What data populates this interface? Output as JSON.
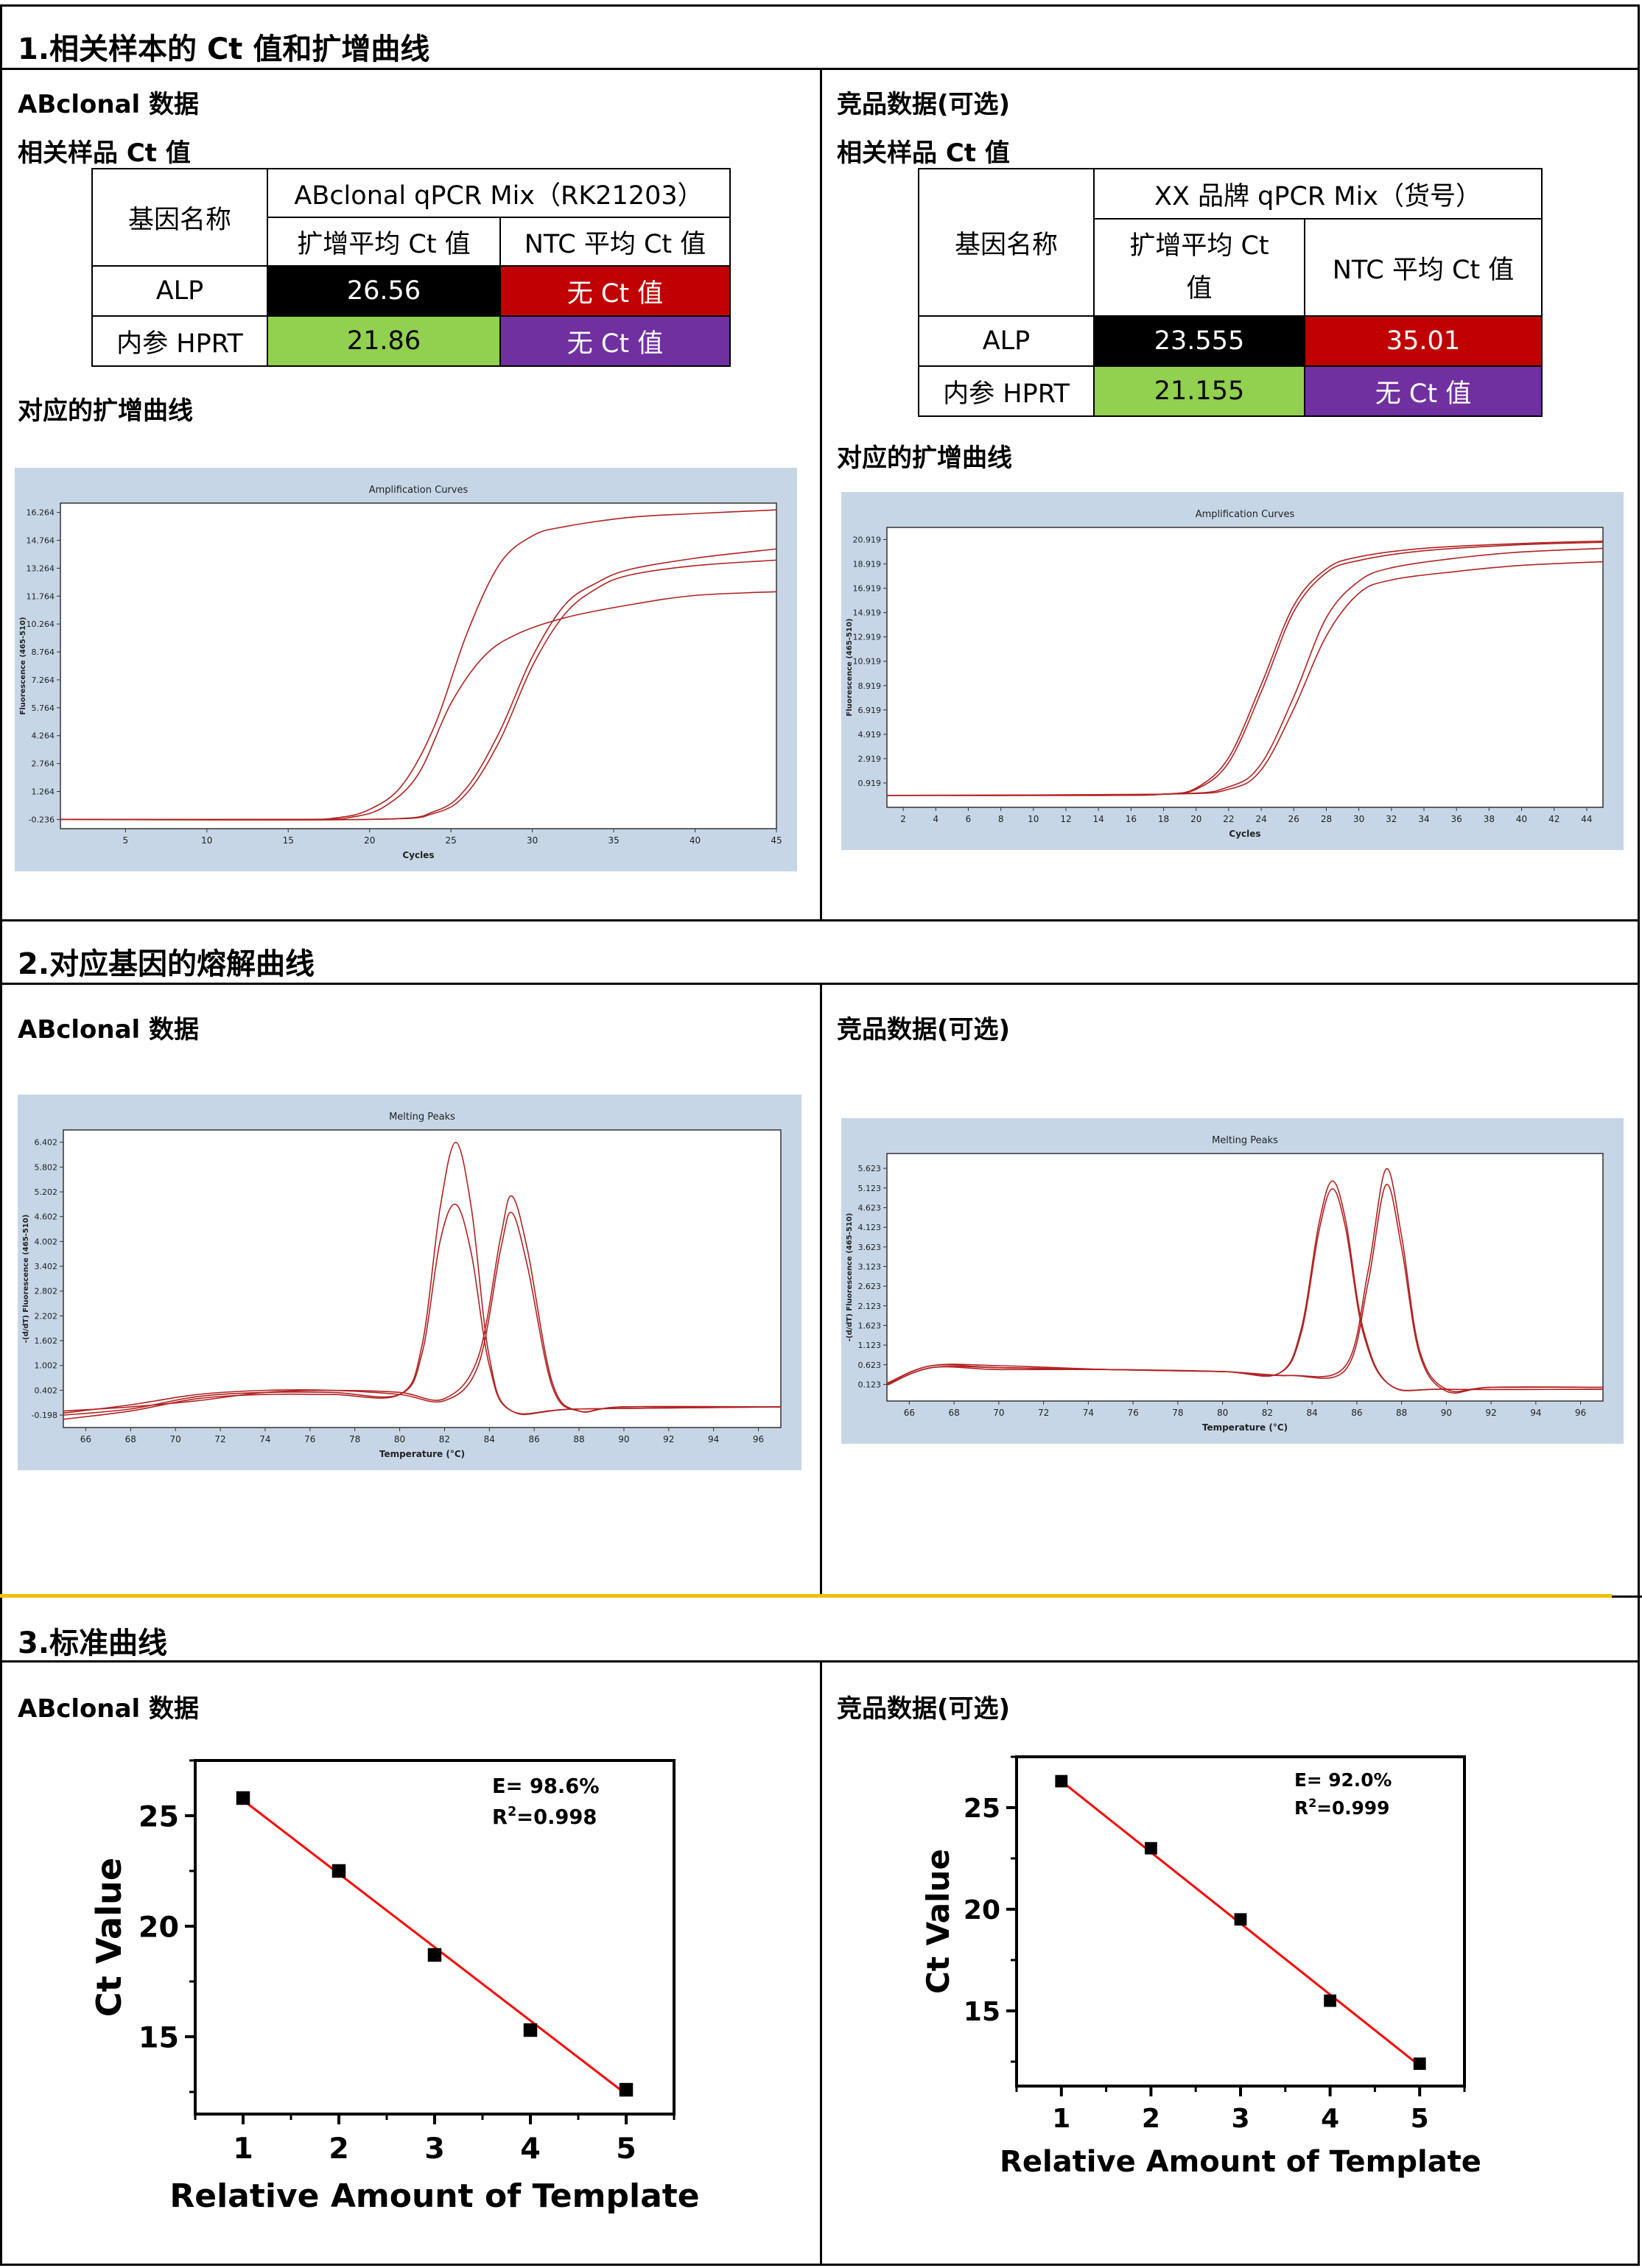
{
  "sections": {
    "s1": "1.相关样本的 Ct 值和扩增曲线",
    "s2": "2.对应基因的熔解曲线",
    "s3": "3.标准曲线"
  },
  "labels": {
    "abclonal_data": "ABclonal 数据",
    "competitor_data": "竞品数据(可选)",
    "related_ct": "相关样品 Ct 值",
    "amp_curve_title": "对应的扩增曲线"
  },
  "table_left": {
    "gene_header": "基因名称",
    "mix_header": "ABclonal qPCR Mix（RK21203）",
    "avg_ct": "扩增平均 Ct 值",
    "ntc_ct": "NTC 平均 Ct 值",
    "rows": [
      {
        "gene": "ALP",
        "avg": "26.56",
        "ntc": "无 Ct 值"
      },
      {
        "gene": "内参 HPRT",
        "avg": "21.86",
        "ntc": "无 Ct 值"
      }
    ]
  },
  "table_right": {
    "gene_header": "基因名称",
    "mix_header": "XX 品牌 qPCR Mix（货号）",
    "avg_ct_l1": "扩增平均 Ct",
    "avg_ct_l2": "值",
    "ntc_ct": "NTC 平均 Ct 值",
    "rows": [
      {
        "gene": "ALP",
        "avg": "23.555",
        "ntc": "35.01"
      },
      {
        "gene": "内参 HPRT",
        "avg": "21.155",
        "ntc": "无 Ct 值"
      }
    ]
  },
  "colors": {
    "panel_bg": "#c6d6e6",
    "curve": "#b22222",
    "black_cell": "#000000",
    "red_cell": "#c00000",
    "green_cell": "#92d050",
    "purple_cell": "#7030a0",
    "divider": "#f0c000"
  },
  "chart_data": [
    {
      "id": "amp_left",
      "type": "line",
      "title": "Amplification Curves",
      "xlabel": "Cycles",
      "ylabel": "Fluorescence (465-510)",
      "xlim": [
        1,
        45
      ],
      "ylim": [
        -0.736,
        16.764
      ],
      "xticks": [
        5,
        10,
        15,
        20,
        25,
        30,
        35,
        40,
        45
      ],
      "yticks": [
        -0.236,
        1.264,
        2.764,
        4.264,
        5.764,
        7.264,
        8.764,
        10.264,
        11.764,
        13.264,
        14.764,
        16.264
      ],
      "ytick_labels": [
        "-0.236",
        "1.264",
        "2.764",
        "4.264",
        "5.764",
        "7.264",
        "8.764",
        "10.264",
        "11.764",
        "13.264",
        "14.764",
        "16.264"
      ],
      "series": [
        {
          "x": [
            1,
            15,
            18,
            20,
            22,
            24,
            26,
            28,
            30,
            32,
            36,
            40,
            45
          ],
          "y": [
            -0.236,
            -0.236,
            -0.15,
            0.3,
            1.6,
            4.8,
            9.8,
            13.5,
            15.0,
            15.5,
            16.0,
            16.2,
            16.4
          ]
        },
        {
          "x": [
            1,
            16,
            19,
            21,
            23,
            25,
            27,
            29,
            32,
            36,
            40,
            45
          ],
          "y": [
            -0.236,
            -0.236,
            -0.1,
            0.5,
            2.2,
            6.0,
            8.5,
            9.7,
            10.6,
            11.3,
            11.8,
            12.0
          ]
        },
        {
          "x": [
            1,
            20,
            24,
            26,
            28,
            30,
            32,
            34,
            36,
            40,
            45
          ],
          "y": [
            -0.236,
            -0.236,
            0.2,
            1.5,
            4.5,
            8.5,
            11.3,
            12.5,
            13.2,
            13.8,
            14.3
          ]
        },
        {
          "x": [
            1,
            20,
            24,
            26,
            28,
            30,
            32,
            34,
            36,
            40,
            45
          ],
          "y": [
            -0.236,
            -0.236,
            0.1,
            1.2,
            4.0,
            8.0,
            10.8,
            12.2,
            12.9,
            13.4,
            13.7
          ]
        }
      ]
    },
    {
      "id": "amp_right",
      "type": "line",
      "title": "Amplification Curves",
      "xlabel": "Cycles",
      "ylabel": "Fluorescence (465-510)",
      "xlim": [
        1,
        45
      ],
      "ylim": [
        -1.081,
        21.919
      ],
      "xticks": [
        2,
        4,
        6,
        8,
        10,
        12,
        14,
        16,
        18,
        20,
        22,
        24,
        26,
        28,
        30,
        32,
        34,
        36,
        38,
        40,
        42,
        44
      ],
      "yticks": [
        0.919,
        2.919,
        4.919,
        6.919,
        8.919,
        10.919,
        12.919,
        14.919,
        16.919,
        18.919,
        20.919
      ],
      "ytick_labels": [
        "0.919",
        "2.919",
        "4.919",
        "6.919",
        "8.919",
        "10.919",
        "12.919",
        "14.919",
        "16.919",
        "18.919",
        "20.919"
      ],
      "series": [
        {
          "x": [
            1,
            14,
            18,
            20,
            22,
            24,
            26,
            28,
            30,
            34,
            40,
            45
          ],
          "y": [
            -0.1,
            -0.1,
            0.0,
            0.5,
            3.0,
            9.0,
            15.5,
            18.5,
            19.5,
            20.2,
            20.6,
            20.8
          ]
        },
        {
          "x": [
            1,
            14,
            18,
            20,
            22,
            24,
            26,
            28,
            30,
            34,
            40,
            45
          ],
          "y": [
            -0.1,
            -0.1,
            0.0,
            0.4,
            2.6,
            8.4,
            15.0,
            18.2,
            19.2,
            20.0,
            20.5,
            20.7
          ]
        },
        {
          "x": [
            1,
            18,
            22,
            24,
            26,
            28,
            30,
            32,
            36,
            40,
            45
          ],
          "y": [
            -0.1,
            0.0,
            0.6,
            2.5,
            8.0,
            14.5,
            17.5,
            18.6,
            19.4,
            19.9,
            20.2
          ]
        },
        {
          "x": [
            1,
            18,
            22,
            24,
            26,
            28,
            30,
            32,
            36,
            40,
            45
          ],
          "y": [
            -0.1,
            0.0,
            0.4,
            2.0,
            7.0,
            13.0,
            16.5,
            17.6,
            18.3,
            18.8,
            19.1
          ]
        }
      ]
    },
    {
      "id": "melt_left",
      "type": "line",
      "title": "Melting Peaks",
      "xlabel": "Temperature (°C)",
      "ylabel": "-(d/dT) Fluorescence (465-510)",
      "xlim": [
        65,
        97
      ],
      "ylim": [
        -0.5,
        6.7
      ],
      "xticks": [
        66,
        68,
        70,
        72,
        74,
        76,
        78,
        80,
        82,
        84,
        86,
        88,
        90,
        92,
        94,
        96
      ],
      "yticks": [
        -0.198,
        0.402,
        1.002,
        1.602,
        2.202,
        2.802,
        3.402,
        4.002,
        4.602,
        5.202,
        5.802,
        6.402
      ],
      "ytick_labels": [
        "-0.198",
        "0.402",
        "1.002",
        "1.602",
        "2.202",
        "2.802",
        "3.402",
        "4.002",
        "4.602",
        "5.202",
        "5.802",
        "6.402"
      ],
      "series": [
        {
          "x": [
            65,
            68,
            71,
            74,
            77,
            80,
            81,
            81.8,
            82.5,
            83.2,
            84,
            85,
            88,
            97
          ],
          "y": [
            -0.3,
            -0.1,
            0.2,
            0.3,
            0.3,
            0.3,
            1.5,
            4.8,
            6.4,
            4.8,
            1.2,
            -0.1,
            -0.05,
            0.0
          ]
        },
        {
          "x": [
            65,
            68,
            71,
            74,
            77,
            80,
            81,
            81.8,
            82.5,
            83.2,
            84,
            85,
            88,
            97
          ],
          "y": [
            -0.2,
            -0.05,
            0.25,
            0.35,
            0.35,
            0.3,
            1.3,
            4.0,
            4.9,
            3.7,
            1.0,
            -0.1,
            -0.05,
            0.0
          ]
        },
        {
          "x": [
            65,
            68,
            71,
            74,
            77,
            80,
            82,
            83.5,
            84.5,
            85,
            85.7,
            86.8,
            88,
            90,
            97
          ],
          "y": [
            -0.1,
            0.0,
            0.15,
            0.35,
            0.4,
            0.35,
            0.2,
            1.2,
            4.1,
            5.1,
            3.8,
            0.6,
            -0.1,
            0.0,
            0.0
          ]
        },
        {
          "x": [
            65,
            68,
            71,
            74,
            77,
            80,
            82,
            83.5,
            84.5,
            85,
            85.7,
            86.8,
            88,
            90,
            97
          ],
          "y": [
            -0.15,
            0.05,
            0.3,
            0.4,
            0.4,
            0.3,
            0.15,
            1.0,
            3.8,
            4.7,
            3.4,
            0.5,
            -0.1,
            0.0,
            0.0
          ]
        }
      ]
    },
    {
      "id": "melt_right",
      "type": "line",
      "title": "Melting Peaks",
      "xlabel": "Temperature (°C)",
      "ylabel": "-(d/dT) Fluorescence (465-510)",
      "xlim": [
        65,
        97
      ],
      "ylim": [
        -0.3,
        6.0
      ],
      "xticks": [
        66,
        68,
        70,
        72,
        74,
        76,
        78,
        80,
        82,
        84,
        86,
        88,
        90,
        92,
        94,
        96
      ],
      "yticks": [
        0.123,
        0.623,
        1.123,
        1.623,
        2.123,
        2.623,
        3.123,
        3.623,
        4.123,
        4.623,
        5.123,
        5.623
      ],
      "ytick_labels": [
        "0.123",
        "0.623",
        "1.123",
        "1.623",
        "2.123",
        "2.623",
        "3.123",
        "3.623",
        "4.123",
        "4.623",
        "5.123",
        "5.623"
      ],
      "series": [
        {
          "x": [
            65,
            67,
            70,
            75,
            80,
            82.5,
            83.5,
            84.3,
            84.9,
            85.5,
            86.3,
            87.5,
            90,
            97
          ],
          "y": [
            0.15,
            0.6,
            0.6,
            0.5,
            0.45,
            0.4,
            1.5,
            4.2,
            5.3,
            4.3,
            1.5,
            0.1,
            0.0,
            0.0
          ]
        },
        {
          "x": [
            65,
            67,
            70,
            75,
            80,
            82.5,
            83.5,
            84.3,
            84.9,
            85.5,
            86.3,
            87.5,
            90,
            97
          ],
          "y": [
            0.12,
            0.55,
            0.55,
            0.5,
            0.45,
            0.4,
            1.4,
            4.0,
            5.1,
            4.1,
            1.4,
            0.1,
            0.0,
            0.0
          ]
        },
        {
          "x": [
            65,
            67,
            70,
            75,
            80,
            83,
            85.5,
            86.5,
            87.3,
            88,
            88.8,
            90,
            92,
            97
          ],
          "y": [
            0.15,
            0.6,
            0.55,
            0.5,
            0.45,
            0.35,
            0.6,
            3.0,
            5.6,
            3.9,
            1.0,
            0.0,
            0.05,
            0.05
          ]
        },
        {
          "x": [
            65,
            67,
            70,
            75,
            80,
            83,
            85.5,
            86.5,
            87.3,
            88,
            88.8,
            90,
            92,
            97
          ],
          "y": [
            0.1,
            0.55,
            0.5,
            0.5,
            0.45,
            0.35,
            0.5,
            2.7,
            5.2,
            3.6,
            0.9,
            -0.05,
            0.05,
            0.05
          ]
        }
      ]
    },
    {
      "id": "std_left",
      "type": "scatter",
      "xlabel": "Relative Amount of Template",
      "ylabel": "Ct Value",
      "xlim": [
        0.5,
        5.5
      ],
      "ylim": [
        11.5,
        27.5
      ],
      "xticks": [
        1,
        2,
        3,
        4,
        5
      ],
      "yticks": [
        15,
        20,
        25
      ],
      "points": {
        "x": [
          1,
          2,
          3,
          4,
          5
        ],
        "y": [
          25.8,
          22.5,
          18.7,
          15.3,
          12.6
        ]
      },
      "fit": {
        "x": [
          1,
          5
        ],
        "y": [
          25.7,
          12.4
        ]
      },
      "annotation_e": "E= 98.6%",
      "annotation_r2": "=0.998"
    },
    {
      "id": "std_right",
      "type": "scatter",
      "xlabel": "Relative Amount of Template",
      "ylabel": "Ct Value",
      "xlim": [
        0.5,
        5.5
      ],
      "ylim": [
        11.3,
        27.5
      ],
      "xticks": [
        1,
        2,
        3,
        4,
        5
      ],
      "yticks": [
        15,
        20,
        25
      ],
      "points": {
        "x": [
          1,
          2,
          3,
          4,
          5
        ],
        "y": [
          26.3,
          23.0,
          19.5,
          15.5,
          12.4
        ]
      },
      "fit": {
        "x": [
          1,
          5
        ],
        "y": [
          26.3,
          12.3
        ]
      },
      "annotation_e": "E= 92.0%",
      "annotation_r2": "=0.999"
    }
  ]
}
